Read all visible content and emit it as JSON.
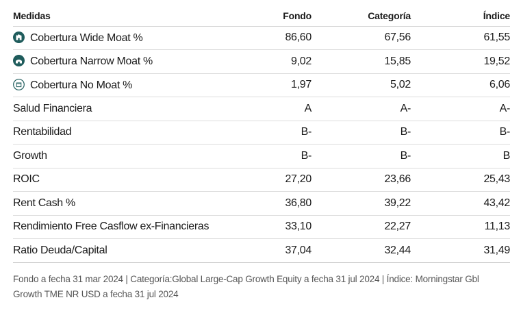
{
  "header": {
    "label": "Medidas",
    "fondo": "Fondo",
    "categoria": "Categoría",
    "indice": "Índice"
  },
  "rows": [
    {
      "label": "Cobertura Wide Moat %",
      "icon": "wide-moat-icon",
      "fondo": "86,60",
      "categoria": "67,56",
      "indice": "61,55"
    },
    {
      "label": "Cobertura Narrow Moat %",
      "icon": "narrow-moat-icon",
      "fondo": "9,02",
      "categoria": "15,85",
      "indice": "19,52"
    },
    {
      "label": "Cobertura No Moat %",
      "icon": "no-moat-icon",
      "fondo": "1,97",
      "categoria": "5,02",
      "indice": "6,06"
    },
    {
      "label": "Salud Financiera",
      "fondo": "A",
      "categoria": "A-",
      "indice": "A-"
    },
    {
      "label": "Rentabilidad",
      "fondo": "B-",
      "categoria": "B-",
      "indice": "B-"
    },
    {
      "label": "Growth",
      "fondo": "B-",
      "categoria": "B-",
      "indice": "B"
    },
    {
      "label": "ROIC",
      "fondo": "27,20",
      "categoria": "23,66",
      "indice": "25,43"
    },
    {
      "label": "Rent Cash %",
      "fondo": "36,80",
      "categoria": "39,22",
      "indice": "43,42"
    },
    {
      "label": "Rendimiento Free Casflow ex-Financieras",
      "fondo": "33,10",
      "categoria": "22,27",
      "indice": "11,13"
    },
    {
      "label": "Ratio Deuda/Capital",
      "fondo": "37,04",
      "categoria": "32,44",
      "indice": "31,49"
    }
  ],
  "footer": "Fondo a fecha 31 mar 2024 | Categoría:Global Large-Cap Growth Equity a fecha 31 jul 2024 | Índice: Morningstar Gbl Growth TME NR USD a fecha 31 jul 2024",
  "colors": {
    "moat_teal": "#1f5c5c",
    "text": "#1a1a1a",
    "footer_text": "#555555",
    "rule": "#dcdcdc"
  }
}
